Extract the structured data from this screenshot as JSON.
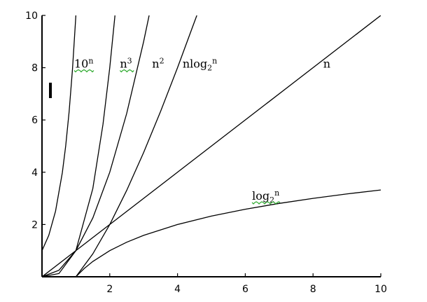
{
  "chart_data": {
    "type": "line",
    "title": "",
    "xlabel": "",
    "ylabel": "",
    "xlim": [
      0,
      10
    ],
    "ylim": [
      0,
      10
    ],
    "x_ticks": [
      2,
      4,
      6,
      8,
      10
    ],
    "y_ticks": [
      2,
      4,
      6,
      8,
      10
    ],
    "x_tick_labels": [
      "2",
      "4",
      "6",
      "8",
      "10"
    ],
    "y_tick_labels": [
      "2",
      "4",
      "6",
      "8",
      "10"
    ],
    "series": [
      {
        "name": "10^n",
        "label_base": "10",
        "label_sup": "n",
        "points": [
          [
            0,
            1
          ],
          [
            0.2,
            1.585
          ],
          [
            0.4,
            2.512
          ],
          [
            0.6,
            3.981
          ],
          [
            0.7,
            5.012
          ],
          [
            0.8,
            6.31
          ],
          [
            0.9,
            7.943
          ],
          [
            1.0,
            10
          ]
        ]
      },
      {
        "name": "n^3",
        "label_base": "n",
        "label_sup": "3",
        "points": [
          [
            0,
            0
          ],
          [
            0.5,
            0.125
          ],
          [
            1,
            1
          ],
          [
            1.5,
            3.375
          ],
          [
            1.8,
            5.832
          ],
          [
            2,
            8
          ],
          [
            2.154,
            10
          ]
        ]
      },
      {
        "name": "n^2",
        "label_base": "n",
        "label_sup": "2",
        "points": [
          [
            0,
            0
          ],
          [
            0.5,
            0.25
          ],
          [
            1,
            1
          ],
          [
            1.5,
            2.25
          ],
          [
            2,
            4
          ],
          [
            2.5,
            6.25
          ],
          [
            3,
            9
          ],
          [
            3.162,
            10
          ]
        ]
      },
      {
        "name": "nlog2^n",
        "label_base": "nlog",
        "label_sub": "2",
        "label_sup": "n",
        "points": [
          [
            1,
            0
          ],
          [
            1.5,
            0.877
          ],
          [
            2,
            2
          ],
          [
            2.5,
            3.305
          ],
          [
            3,
            4.755
          ],
          [
            3.5,
            6.326
          ],
          [
            4,
            8
          ],
          [
            4.43,
            9.51
          ],
          [
            4.57,
            10
          ]
        ]
      },
      {
        "name": "n",
        "label_base": "n",
        "points": [
          [
            0,
            0
          ],
          [
            10,
            10
          ]
        ]
      },
      {
        "name": "log2^n",
        "label_base": "log",
        "label_sub": "2",
        "label_sup": "n",
        "points": [
          [
            1,
            0
          ],
          [
            1.25,
            0.322
          ],
          [
            1.5,
            0.585
          ],
          [
            2,
            1
          ],
          [
            2.5,
            1.322
          ],
          [
            3,
            1.585
          ],
          [
            4,
            2
          ],
          [
            5,
            2.322
          ],
          [
            6,
            2.585
          ],
          [
            7,
            2.807
          ],
          [
            8,
            3
          ],
          [
            9,
            3.17
          ],
          [
            10,
            3.322
          ]
        ]
      }
    ]
  },
  "colors": {
    "axes": "#000000",
    "curves": "#000000",
    "spell_underline": "#2eaa2e"
  }
}
